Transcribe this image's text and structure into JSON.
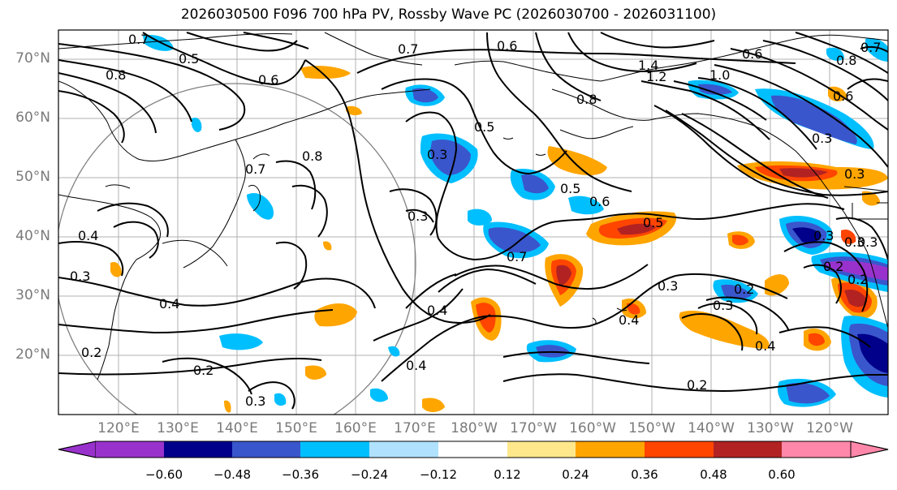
{
  "title": "2026030500 F096 700 hPa PV, Rossby Wave PC (2026030700 - 2026031100)",
  "lat_labels": [
    "70°N",
    "60°N",
    "50°N",
    "40°N",
    "30°N",
    "20°N"
  ],
  "lon_labels": [
    "120°E",
    "130°E",
    "140°E",
    "150°E",
    "160°E",
    "170°E",
    "180°W",
    "170°W",
    "160°W",
    "150°W",
    "140°W",
    "130°W",
    "120°W"
  ],
  "colorbar": {
    "ticks": [
      "−0.60",
      "−0.48",
      "−0.36",
      "−0.24",
      "−0.12",
      "0.12",
      "0.24",
      "0.36",
      "0.48",
      "0.60"
    ],
    "colors": [
      "#9932cc",
      "#00008b",
      "#3a56cc",
      "#00bfff",
      "#b0e2ff",
      "#ffffff",
      "#ffe88c",
      "#ffa500",
      "#ff4500",
      "#b22222",
      "#ff88aa"
    ]
  },
  "contour_labels": [
    "0.7",
    "0.8",
    "0.5",
    "0.6",
    "0.7",
    "1.4",
    "1.2",
    "1.0",
    "0.6",
    "0.8",
    "0.7",
    "0.6",
    "0.8",
    "0.5",
    "0.8",
    "0.7",
    "0.3",
    "0.3",
    "0.6",
    "0.5",
    "0.5",
    "0.3",
    "0.4",
    "0.3",
    "0.4",
    "0.2",
    "0.7",
    "0.4",
    "0.3",
    "0.2",
    "0.3",
    "0.3",
    "0.4",
    "0.4",
    "0.2",
    "0.2",
    "0.3",
    "0.2",
    "0.3",
    "0.6",
    "0.4",
    "0.3",
    "0.3",
    "0.2"
  ]
}
